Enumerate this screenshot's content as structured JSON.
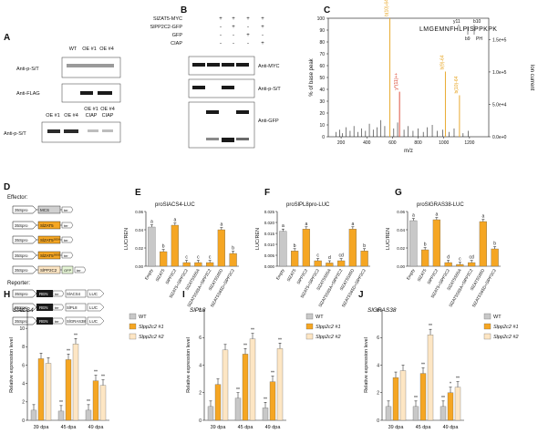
{
  "panel_letters": [
    "A",
    "B",
    "C",
    "D",
    "E",
    "F",
    "G",
    "H",
    "I",
    "J"
  ],
  "colors": {
    "gray": "#c8c8c8",
    "orange": "#f5a623",
    "light": "#fde6c4",
    "black": "#111111",
    "blot_dark": "#1a1a1a",
    "highlight_red": "#d9412b",
    "annot_orange": "#e6a11a"
  },
  "panelA": {
    "top_cols": [
      "WT",
      "OE #1",
      "OE #4"
    ],
    "rows": [
      "Anti-p-S/T",
      "Anti-FLAG"
    ],
    "bottom_cols": [
      "OE #1",
      "OE #4",
      "OE #1 CIAP",
      "OE #4 CIAP"
    ],
    "bottom_row": "Anti-p-S/T"
  },
  "panelB": {
    "header_rows": [
      {
        "label": "SlZAT5-MYC",
        "marks": [
          "+",
          "+",
          "+",
          "+"
        ]
      },
      {
        "label": "SlPP2C2-GFP",
        "marks": [
          "-",
          "+",
          "-",
          "+"
        ]
      },
      {
        "label": "GFP",
        "marks": [
          "-",
          "-",
          "+",
          "-"
        ]
      },
      {
        "label": "CIAP",
        "marks": [
          "-",
          "-",
          "-",
          "+"
        ]
      }
    ],
    "rows": [
      "Anti-MYC",
      "Anti-p-S/T",
      "Anti-GFP"
    ]
  },
  "panelC": {
    "ylabel": "% of base peak",
    "y2label": "Ion current",
    "xlabel": "m/z",
    "yticks": [
      "0",
      "10",
      "20",
      "30",
      "40",
      "50",
      "60",
      "70",
      "80",
      "90",
      "100"
    ],
    "y2ticks": [
      "0.0e+0",
      "5.0e+4",
      "1.0e+5",
      "1.5e+5"
    ],
    "xticks": [
      "200",
      "400",
      "600",
      "800",
      "1000",
      "1200"
    ],
    "sequence": "LMGEMNFHLPISPPKPK",
    "seq_annotations": [
      "y11",
      "b9",
      "b10",
      "PH"
    ],
    "peaks": [
      {
        "label": "b(10)-64++",
        "mz": 580,
        "pct": 100,
        "color": "orange"
      },
      {
        "label": "y*(11)++",
        "mz": 655,
        "pct": 38,
        "color": "red"
      },
      {
        "label": "b(9)-64",
        "mz": 1012,
        "pct": 55,
        "color": "orange"
      },
      {
        "label": "b(10)-64",
        "mz": 1122,
        "pct": 35,
        "color": "orange"
      }
    ]
  },
  "panelD": {
    "effector_title": "Effector:",
    "reporter_title": "Reporter:",
    "effectors": [
      {
        "promoter": "35Spro",
        "gene": "MCS",
        "tag": "ter"
      },
      {
        "promoter": "35Spro",
        "gene": "SlZAT5",
        "tag": "ter"
      },
      {
        "promoter": "35Spro",
        "gene": "SlZAT5S65A",
        "tag": "ter"
      },
      {
        "promoter": "35Spro",
        "gene": "SlZAT5S65D",
        "tag": "ter"
      },
      {
        "promoter": "35Spro",
        "gene": "SlPP2C2",
        "tag": "GFP",
        "ter": "ter"
      }
    ],
    "reporters": [
      {
        "promoter": "35Spro",
        "gene": "REN",
        "target": "SlACS4",
        "luc": "LUC"
      },
      {
        "promoter": "35Spro",
        "gene": "REN",
        "target": "SlPL8",
        "luc": "LUC"
      },
      {
        "promoter": "35Spro",
        "gene": "REN",
        "target": "SlGRAS38",
        "luc": "LUC"
      }
    ]
  },
  "lucCategories": [
    "Empty",
    "SlZAT5",
    "SlPP2C2",
    "SlZAT5+SlPP2C2",
    "SlZAT5S65A",
    "SlZAT5S65A+SlPP2C2",
    "SlZAT5S65D",
    "SlZAT5S65D+SlPP2C2"
  ],
  "chart_data": [
    {
      "panel": "E",
      "type": "bar",
      "title": "proSlACS4-LUC",
      "ylabel": "LUC/REN",
      "ylim": [
        0,
        0.06
      ],
      "yticks": [
        "0.00",
        "0.02",
        "0.04",
        "0.06"
      ],
      "values": [
        0.043,
        0.016,
        0.045,
        0.004,
        0.004,
        0.004,
        0.04,
        0.014
      ],
      "letters": [
        "a",
        "b",
        "a",
        "c",
        "c",
        "c",
        "a",
        "b"
      ]
    },
    {
      "panel": "F",
      "type": "bar",
      "title": "proSlPL8pro-LUC",
      "ylabel": "LUC/REN",
      "ylim": [
        0,
        0.025
      ],
      "yticks": [
        "0.000",
        "0.005",
        "0.010",
        "0.015",
        "0.020",
        "0.025"
      ],
      "values": [
        0.016,
        0.007,
        0.017,
        0.0025,
        0.0015,
        0.0025,
        0.017,
        0.007
      ],
      "letters": [
        "a",
        "b",
        "a",
        "c",
        "d",
        "cd",
        "a",
        "b"
      ]
    },
    {
      "panel": "G",
      "type": "bar",
      "title": "proSlGRAS38-LUC",
      "ylabel": "LUC/REN",
      "ylim": [
        0,
        0.06
      ],
      "yticks": [
        "0.00",
        "0.02",
        "0.04",
        "0.06"
      ],
      "values": [
        0.05,
        0.018,
        0.051,
        0.004,
        0.002,
        0.004,
        0.049,
        0.019
      ],
      "letters": [
        "a",
        "b",
        "a",
        "d",
        "c",
        "cd",
        "a",
        "b"
      ]
    },
    {
      "panel": "H",
      "type": "bar",
      "title": "SlACS4",
      "ylabel": "Relative expression level",
      "ylim": [
        0,
        12
      ],
      "yticks": [
        "0",
        "2",
        "4",
        "6",
        "8",
        "10",
        "12"
      ],
      "categories": [
        "39 dpa",
        "45 dpa",
        "49 dpa"
      ],
      "series": [
        {
          "name": "WT",
          "values": [
            1.1,
            1.0,
            1.1
          ]
        },
        {
          "name": "Slpp2c2 #1",
          "values": [
            6.7,
            6.6,
            4.3
          ]
        },
        {
          "name": "Slpp2c2 #2",
          "values": [
            6.2,
            8.3,
            3.8
          ]
        }
      ],
      "stars": [
        [
          "",
          "**",
          "**"
        ],
        [
          "",
          "**",
          "**"
        ],
        [
          "",
          "**",
          "**"
        ]
      ]
    },
    {
      "panel": "I",
      "type": "bar",
      "title": "SlPL8",
      "ylabel": "Relative expression level",
      "ylim": [
        0,
        8
      ],
      "yticks": [
        "0",
        "2",
        "4",
        "6",
        "8"
      ],
      "categories": [
        "39 dpa",
        "45 dpa",
        "49 dpa"
      ],
      "series": [
        {
          "name": "WT",
          "values": [
            1.0,
            1.6,
            0.9
          ]
        },
        {
          "name": "Slpp2c2 #1",
          "values": [
            2.6,
            4.8,
            2.8
          ]
        },
        {
          "name": "Slpp2c2 #2",
          "values": [
            5.1,
            5.9,
            5.2
          ]
        }
      ],
      "stars": [
        [
          "",
          "**",
          "**"
        ],
        [
          "",
          "**",
          "**"
        ],
        [
          "",
          "**",
          "**"
        ]
      ]
    },
    {
      "panel": "J",
      "type": "bar",
      "title": "SlGRAS38",
      "ylabel": "Relative expression level",
      "ylim": [
        0,
        8
      ],
      "yticks": [
        "0",
        "2",
        "4",
        "6",
        "8"
      ],
      "categories": [
        "39 dpa",
        "45 dpa",
        "49 dpa"
      ],
      "series": [
        {
          "name": "WT",
          "values": [
            1.0,
            1.0,
            1.0
          ]
        },
        {
          "name": "Slpp2c2 #1",
          "values": [
            3.1,
            3.4,
            2.0
          ]
        },
        {
          "name": "Slpp2c2 #2",
          "values": [
            3.6,
            6.2,
            2.4
          ]
        }
      ],
      "stars": [
        [
          "",
          "**",
          "**"
        ],
        [
          "",
          "**",
          "*"
        ],
        [
          "",
          "**",
          "**"
        ]
      ]
    }
  ]
}
